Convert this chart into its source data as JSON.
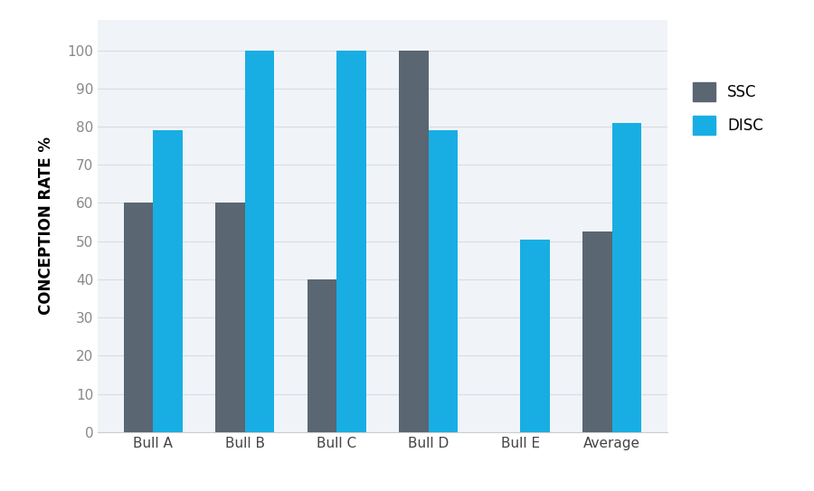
{
  "categories": [
    "Bull A",
    "Bull B",
    "Bull C",
    "Bull D",
    "Bull E",
    "Average"
  ],
  "ssc_values": [
    60,
    60,
    40,
    100,
    0,
    52.5
  ],
  "disc_values": [
    79,
    100,
    100,
    79,
    50.5,
    81
  ],
  "ssc_color": "#5a6672",
  "disc_color": "#18aee3",
  "ylabel": "CONCEPTION RATE %",
  "ylim": [
    0,
    108
  ],
  "yticks": [
    0,
    10,
    20,
    30,
    40,
    50,
    60,
    70,
    80,
    90,
    100
  ],
  "legend_ssc": "SSC",
  "legend_disc": "DISC",
  "background_color": "#ffffff",
  "plot_bg_color": "#f0f4f8",
  "bar_width": 0.32,
  "axis_label_fontsize": 12,
  "tick_fontsize": 11,
  "legend_fontsize": 12,
  "grid_color": "#d8dde3",
  "spine_color": "#cccccc"
}
